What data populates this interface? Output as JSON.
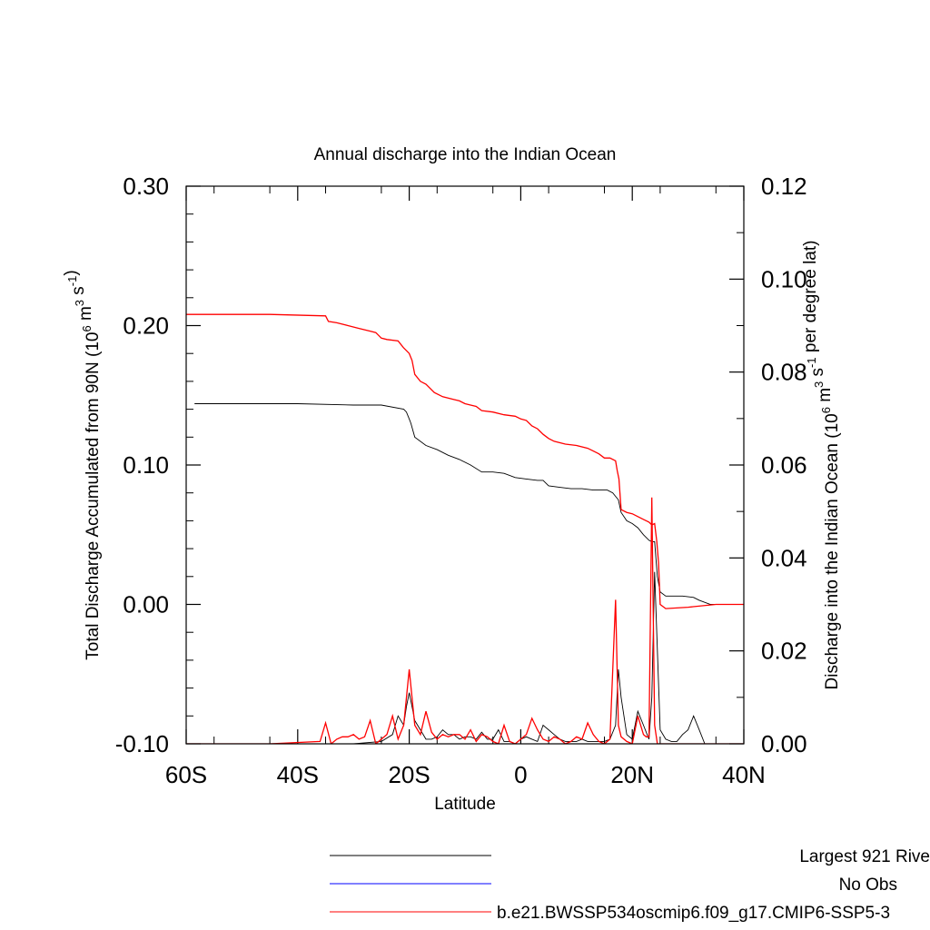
{
  "chart_data": {
    "type": "line",
    "title": "Annual discharge into the Indian Ocean",
    "xlabel": "Latitude",
    "ylabel_left": "Total Discharge Accumulated from 90N (10^6 m^3 s^-1)",
    "ylabel_right": "Discharge into the Indian Ocean (10^6 m^3 s^-1 per degree lat)",
    "xlim": [
      -60,
      40
    ],
    "ylim_left": [
      -0.1,
      0.3
    ],
    "ylim_right": [
      0,
      0.12
    ],
    "x_ticks": [
      {
        "value": -60,
        "label": "60S"
      },
      {
        "value": -40,
        "label": "40S"
      },
      {
        "value": -20,
        "label": "20S"
      },
      {
        "value": 0,
        "label": "0"
      },
      {
        "value": 20,
        "label": "20N"
      },
      {
        "value": 40,
        "label": "40N"
      }
    ],
    "y_left_ticks": [
      {
        "value": 0.3,
        "label": "0.30"
      },
      {
        "value": 0.2,
        "label": "0.20"
      },
      {
        "value": 0.1,
        "label": "0.10"
      },
      {
        "value": 0.0,
        "label": "0.00"
      },
      {
        "value": -0.1,
        "label": "-0.10"
      }
    ],
    "y_right_ticks": [
      {
        "value": 0.12,
        "label": "0.12"
      },
      {
        "value": 0.1,
        "label": "0.10"
      },
      {
        "value": 0.08,
        "label": "0.08"
      },
      {
        "value": 0.06,
        "label": "0.06"
      },
      {
        "value": 0.04,
        "label": "0.04"
      },
      {
        "value": 0.02,
        "label": "0.02"
      },
      {
        "value": 0.0,
        "label": "0.00"
      }
    ],
    "grid": false,
    "legend_position": "bottom",
    "series": [
      {
        "name": "Largest 921 Rive",
        "color": "#000000",
        "axis": "left",
        "kind": "accumulated",
        "x": [
          -58.5,
          -40,
          -30,
          -25,
          -21,
          -20.5,
          -20,
          -19.7,
          -19,
          -17,
          -15,
          -13,
          -11,
          -9,
          -7,
          -5,
          -3,
          -1,
          1,
          3,
          4,
          5,
          7,
          9,
          11,
          13,
          14.5,
          15.5,
          16.5,
          17.5,
          18,
          19,
          20,
          21,
          22,
          23,
          23.5,
          24,
          24.5,
          25,
          26,
          29,
          31,
          32,
          34,
          40
        ],
        "y": [
          0.144,
          0.144,
          0.143,
          0.143,
          0.14,
          0.138,
          0.133,
          0.13,
          0.12,
          0.114,
          0.111,
          0.107,
          0.104,
          0.1,
          0.095,
          0.095,
          0.094,
          0.091,
          0.09,
          0.089,
          0.089,
          0.085,
          0.084,
          0.083,
          0.083,
          0.082,
          0.082,
          0.082,
          0.08,
          0.075,
          0.066,
          0.06,
          0.058,
          0.055,
          0.05,
          0.046,
          0.045,
          0.045,
          0.02,
          0.009,
          0.006,
          0.006,
          0.005,
          0.003,
          0.0,
          0.0
        ]
      },
      {
        "name": "No Obs",
        "color": "#0000ff",
        "axis": "left",
        "kind": "accumulated",
        "x": [],
        "y": []
      },
      {
        "name": "b.e21.BWSSP534oscmip6.f09_g17.CMIP6-SSP5-3",
        "color": "#ff0000",
        "axis": "left",
        "kind": "accumulated",
        "x": [
          -60,
          -45,
          -35,
          -34.5,
          -33,
          -31,
          -29,
          -27,
          -26,
          -25,
          -24,
          -22,
          -21,
          -20.5,
          -20,
          -19.5,
          -19,
          -18,
          -17,
          -15.5,
          -14,
          -12,
          -11,
          -10,
          -9,
          -8,
          -7,
          -5,
          -3,
          -1,
          0,
          1,
          2,
          3,
          4,
          5,
          6,
          8,
          10,
          12,
          13,
          14,
          15,
          16,
          17,
          17.3,
          17.6,
          18,
          19,
          20,
          21,
          22,
          23,
          23.5,
          24,
          24.4,
          24.7,
          25,
          26,
          30,
          35,
          40
        ],
        "y": [
          0.208,
          0.208,
          0.207,
          0.203,
          0.202,
          0.2,
          0.198,
          0.196,
          0.195,
          0.191,
          0.19,
          0.189,
          0.184,
          0.182,
          0.18,
          0.175,
          0.165,
          0.16,
          0.158,
          0.152,
          0.149,
          0.147,
          0.146,
          0.144,
          0.143,
          0.142,
          0.139,
          0.138,
          0.136,
          0.135,
          0.133,
          0.132,
          0.128,
          0.126,
          0.122,
          0.119,
          0.117,
          0.115,
          0.114,
          0.112,
          0.11,
          0.108,
          0.105,
          0.105,
          0.103,
          0.096,
          0.09,
          0.068,
          0.066,
          0.065,
          0.063,
          0.061,
          0.059,
          0.057,
          0.058,
          0.045,
          0.03,
          0.0,
          -0.003,
          -0.002,
          0.0,
          0.0
        ]
      },
      {
        "name": "Largest 921 Rive",
        "color": "#000000",
        "axis": "right",
        "kind": "per-degree",
        "x": [
          -60,
          -35,
          -30,
          -25,
          -23,
          -22,
          -21,
          -20.5,
          -20,
          -19.5,
          -19,
          -18,
          -17,
          -16,
          -15,
          -14,
          -13,
          -12,
          -11,
          -10,
          -9,
          -8,
          -7,
          -6,
          -5,
          -4,
          -3,
          -2,
          -1,
          0,
          1,
          2,
          3,
          4,
          5,
          6,
          7,
          8,
          9,
          10,
          11,
          12,
          13,
          14,
          15,
          16,
          17,
          17.5,
          18,
          19,
          20,
          21,
          22,
          23,
          23.5,
          24,
          25,
          26,
          27,
          28,
          29,
          30,
          31,
          32,
          33,
          40
        ],
        "y": [
          0.0,
          0.0,
          0.0,
          0.0005,
          0.002,
          0.006,
          0.004,
          0.008,
          0.011,
          0.008,
          0.005,
          0.003,
          0.001,
          0.001,
          0.0015,
          0.003,
          0.002,
          0.002,
          0.001,
          0.0015,
          0.0015,
          0.001,
          0.0025,
          0.001,
          0.001,
          0.003,
          0.0005,
          0.0005,
          0.0,
          0.001,
          0.0015,
          0.001,
          0.0005,
          0.004,
          0.003,
          0.002,
          0.001,
          0.0005,
          0.0005,
          0.0005,
          0.001,
          0.0005,
          0.0005,
          0.0005,
          0.0005,
          0.001,
          0.004,
          0.016,
          0.01,
          0.002,
          0.001,
          0.007,
          0.004,
          0.001,
          0.01,
          0.037,
          0.003,
          0.001,
          0.0005,
          0.0005,
          0.002,
          0.003,
          0.006,
          0.003,
          0.0,
          0.0
        ]
      },
      {
        "name": "b.e21.BWSSP534oscmip6.f09_g17.CMIP6-SSP5-3",
        "color": "#ff0000",
        "axis": "right",
        "kind": "per-degree",
        "x": [
          -60,
          -45,
          -36,
          -35,
          -34,
          -33,
          -32,
          -31,
          -30,
          -29,
          -28,
          -27,
          -26,
          -25,
          -24,
          -23,
          -22,
          -21,
          -20,
          -19,
          -18,
          -17,
          -16,
          -15,
          -14,
          -13,
          -12,
          -11,
          -10,
          -9,
          -8,
          -7,
          -6,
          -5,
          -4,
          -3,
          -2,
          -1,
          0,
          1,
          2,
          3,
          4,
          5,
          6,
          7,
          8,
          9,
          10,
          11,
          12,
          13,
          14,
          15,
          16,
          17,
          17.5,
          18,
          19,
          20,
          21,
          22,
          22.5,
          23,
          23.5,
          24,
          24.5,
          25,
          26,
          30,
          40
        ],
        "y": [
          0.0,
          0.0,
          0.0005,
          0.0045,
          0.0,
          0.001,
          0.0015,
          0.0015,
          0.002,
          0.001,
          0.0015,
          0.005,
          0.0,
          0.001,
          0.002,
          0.006,
          0.001,
          0.004,
          0.016,
          0.004,
          0.002,
          0.007,
          0.0025,
          0.001,
          0.002,
          0.0015,
          0.002,
          0.002,
          0.001,
          0.003,
          0.0005,
          0.002,
          0.0015,
          0.0005,
          0.0,
          0.004,
          0.0005,
          0.0,
          0.001,
          0.002,
          0.0055,
          0.003,
          0.001,
          0.0005,
          0.0015,
          0.001,
          0.0,
          0.0005,
          0.0015,
          0.001,
          0.0045,
          0.002,
          0.0005,
          0.0,
          0.001,
          0.031,
          0.004,
          0.0015,
          0.0005,
          0.0,
          0.006,
          0.002,
          0.0015,
          0.0015,
          0.053,
          0.004,
          0.0,
          0.0,
          0.0,
          0.0,
          0.0
        ]
      }
    ]
  }
}
